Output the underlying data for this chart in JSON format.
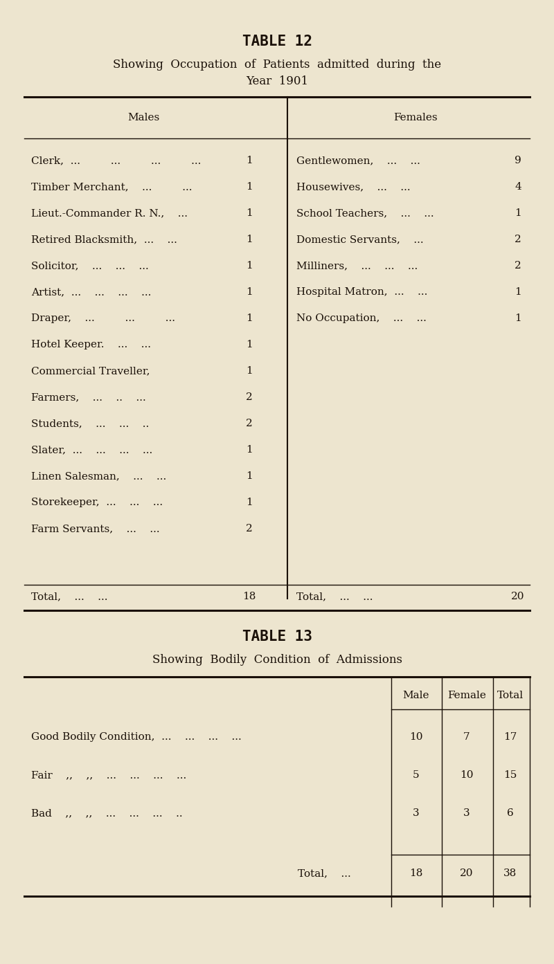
{
  "bg_color": "#ede5cf",
  "text_color": "#1a1008",
  "table12_title": "TABLE 12",
  "table12_subtitle1": "Showing  Occupation  of  Patients  admitted  during  the",
  "table12_subtitle2": "Year  1901",
  "males_header": "Males",
  "females_header": "Females",
  "males_rows": [
    [
      "Clerk,  ...         ...         ...         ...",
      "1"
    ],
    [
      "Timber Merchant,    ...         ...",
      "1"
    ],
    [
      "Lieut.-Commander R. N.,    ...",
      "1"
    ],
    [
      "Retired Blacksmith,  ...    ...",
      "1"
    ],
    [
      "Solicitor,    ...    ...    ...",
      "1"
    ],
    [
      "Artist,  ...    ...    ...    ...",
      "1"
    ],
    [
      "Draper,    ...         ...         ...",
      "1"
    ],
    [
      "Hotel Keeper.    ...    ...",
      "1"
    ],
    [
      "Commercial Traveller,",
      "1"
    ],
    [
      "Farmers,    ...    ..    ...",
      "2"
    ],
    [
      "Students,    ...    ...    ..",
      "2"
    ],
    [
      "Slater,  ...    ...    ...    ...",
      "1"
    ],
    [
      "Linen Salesman,    ...    ...",
      "1"
    ],
    [
      "Storekeeper,  ...    ...    ...",
      "1"
    ],
    [
      "Farm Servants,    ...    ...",
      "2"
    ]
  ],
  "females_rows": [
    [
      "Gentlewomen,    ...    ...",
      "9"
    ],
    [
      "Housewives,    ...    ...",
      "4"
    ],
    [
      "School Teachers,    ...    ...",
      "1"
    ],
    [
      "Domestic Servants,    ...",
      "2"
    ],
    [
      "Milliners,    ...    ...    ...",
      "2"
    ],
    [
      "Hospital Matron,  ...    ...",
      "1"
    ],
    [
      "No Occupation,    ...    ...",
      "1"
    ]
  ],
  "males_total_label": "Total,    ...    ...",
  "males_total_value": "18",
  "females_total_label": "Total,    ...    ...",
  "females_total_value": "20",
  "table13_title": "TABLE 13",
  "table13_subtitle": "Showing  Bodily  Condition  of  Admissions",
  "table13_col_headers": [
    "Male",
    "Female",
    "Total"
  ],
  "table13_rows": [
    [
      "Good Bodily Condition,  ...    ...    ...    ...",
      "10",
      "7",
      "17"
    ],
    [
      "Fair    ,,    ,,    ...    ...    ...    ...",
      "5",
      "10",
      "15"
    ],
    [
      "Bad    ,,    ,,    ...    ...    ...    ..",
      "3",
      "3",
      "6"
    ]
  ],
  "table13_total_label": "Total,    ...",
  "table13_total_values": [
    "18",
    "20",
    "38"
  ]
}
